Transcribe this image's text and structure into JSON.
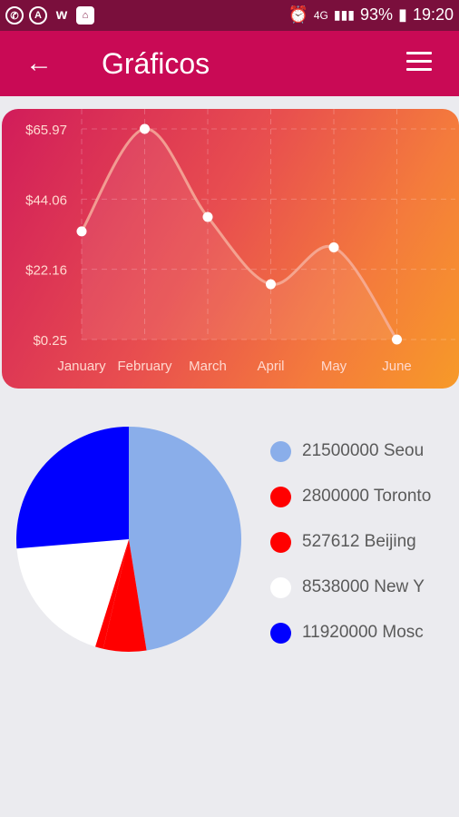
{
  "status_bar": {
    "left_icons": [
      "whatsapp-icon",
      "a-icon",
      "w-icon",
      "app-icon"
    ],
    "alarm": "alarm-icon",
    "network": "4G",
    "battery": "93%",
    "time": "19:20"
  },
  "appbar": {
    "title": "Gráficos",
    "back_icon": "arrow-left-icon",
    "menu_icon": "menu-icon"
  },
  "chart_data": [
    {
      "type": "line",
      "categories": [
        "January",
        "February",
        "March",
        "April",
        "May",
        "June"
      ],
      "values": [
        34,
        65.97,
        38.5,
        17.5,
        29,
        0.25
      ],
      "yticks": [
        "$65.97",
        "$44.06",
        "$22.16",
        "$0.25"
      ],
      "ylim": [
        0.25,
        65.97
      ],
      "grid": true,
      "smooth": true,
      "colors": {
        "line": "#f6b3a0",
        "point": "#ffffff",
        "text": "#ffd9cf"
      }
    },
    {
      "type": "pie",
      "slices": [
        {
          "value": 21500000,
          "label": "21500000 Seou",
          "color": "#8aaeea"
        },
        {
          "value": 2800000,
          "label": "2800000 Toronto",
          "color": "#ff0000"
        },
        {
          "value": 527612,
          "label": "527612 Beijing",
          "color": "#ff0000"
        },
        {
          "value": 8538000,
          "label": "8538000 New Y",
          "color": "#ffffff"
        },
        {
          "value": 11920000,
          "label": "11920000 Mosc",
          "color": "#0000ff"
        }
      ]
    }
  ]
}
